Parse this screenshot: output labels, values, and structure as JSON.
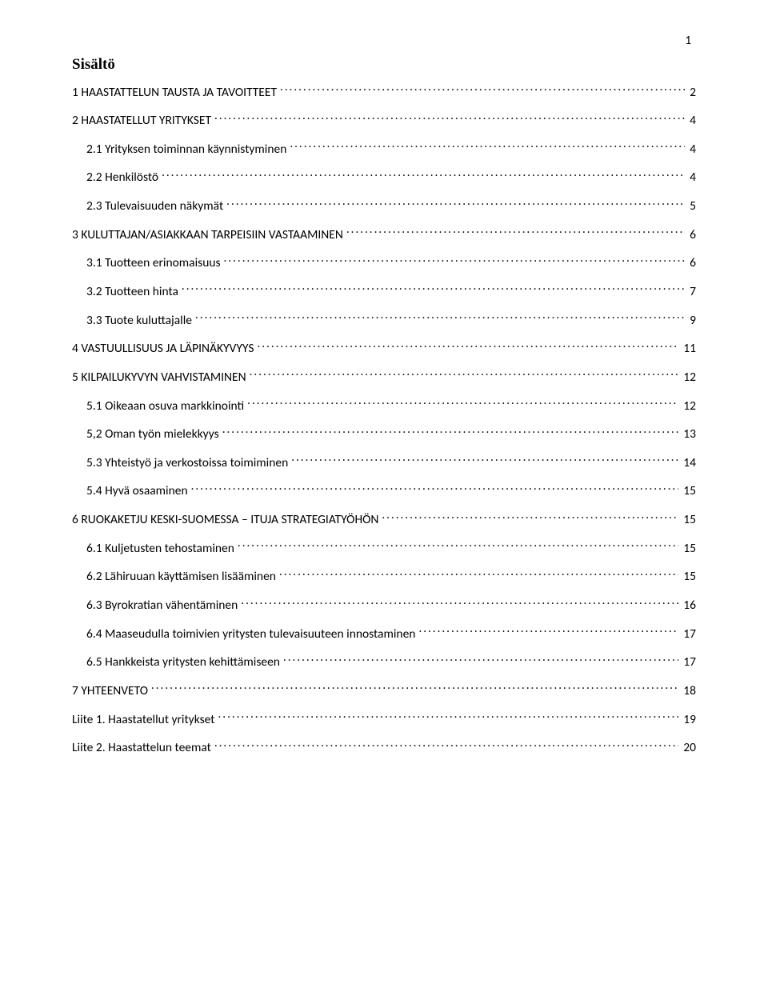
{
  "page_number": "1",
  "heading": "Sisältö",
  "text_color": "#000000",
  "background_color": "#ffffff",
  "body_font_family": "Calibri",
  "heading_font_family": "Times New Roman",
  "body_font_size_pt": 12,
  "heading_font_size_pt": 14,
  "entries": [
    {
      "level": 1,
      "label": "1 HAASTATTELUN TAUSTA JA TAVOITTEET",
      "page": "2"
    },
    {
      "level": 1,
      "label": "2 HAASTATELLUT YRITYKSET",
      "page": "4"
    },
    {
      "level": 2,
      "label": "2.1 Yrityksen toiminnan käynnistyminen",
      "page": "4"
    },
    {
      "level": 2,
      "label": "2.2 Henkilöstö",
      "page": "4"
    },
    {
      "level": 2,
      "label": "2.3 Tulevaisuuden näkymät",
      "page": "5"
    },
    {
      "level": 1,
      "label": "3 KULUTTAJAN/ASIAKKAAN TARPEISIIN VASTAAMINEN",
      "page": "6"
    },
    {
      "level": 2,
      "label": "3.1 Tuotteen erinomaisuus",
      "page": "6"
    },
    {
      "level": 2,
      "label": "3.2 Tuotteen hinta",
      "page": "7"
    },
    {
      "level": 2,
      "label": "3.3 Tuote kuluttajalle",
      "page": "9"
    },
    {
      "level": 1,
      "label": "4 VASTUULLISUUS JA LÄPINÄKYVYYS",
      "page": "11"
    },
    {
      "level": 1,
      "label": "5 KILPAILUKYVYN VAHVISTAMINEN",
      "page": "12"
    },
    {
      "level": 2,
      "label": "5.1 Oikeaan osuva markkinointi",
      "page": "12"
    },
    {
      "level": 2,
      "label": "5,2 Oman työn mielekkyys",
      "page": "13"
    },
    {
      "level": 2,
      "label": "5.3 Yhteistyö ja verkostoissa toimiminen",
      "page": "14"
    },
    {
      "level": 2,
      "label": "5.4 Hyvä osaaminen",
      "page": "15"
    },
    {
      "level": 1,
      "label": "6 RUOKAKETJU KESKI-SUOMESSA – ITUJA STRATEGIATYÖHÖN",
      "page": "15"
    },
    {
      "level": 2,
      "label": "6.1 Kuljetusten tehostaminen",
      "page": "15"
    },
    {
      "level": 2,
      "label": "6.2 Lähiruuan käyttämisen lisääminen",
      "page": "15"
    },
    {
      "level": 2,
      "label": "6.3 Byrokratian vähentäminen",
      "page": "16"
    },
    {
      "level": 2,
      "label": "6.4 Maaseudulla toimivien yritysten tulevaisuuteen innostaminen",
      "page": "17"
    },
    {
      "level": 2,
      "label": "6.5 Hankkeista yritysten kehittämiseen",
      "page": "17"
    },
    {
      "level": 1,
      "label": "7 YHTEENVETO",
      "page": "18"
    },
    {
      "level": 1,
      "label": "Liite 1. Haastatellut yritykset",
      "page": "19"
    },
    {
      "level": 1,
      "label": "Liite 2. Haastattelun teemat",
      "page": "20"
    }
  ]
}
